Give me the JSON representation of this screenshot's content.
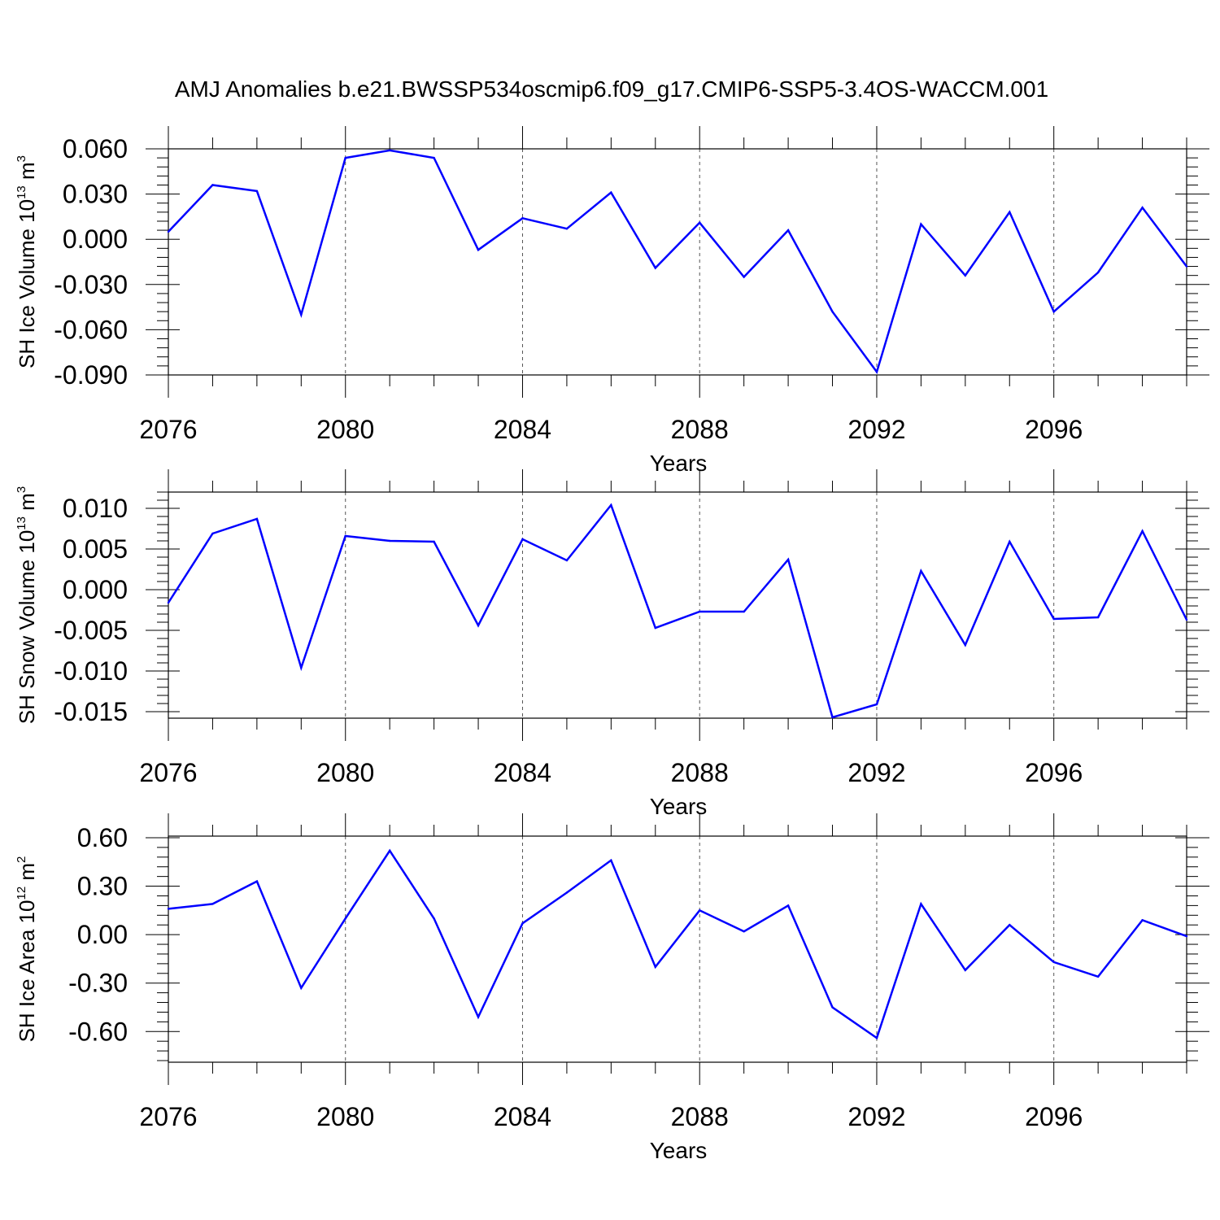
{
  "figure": {
    "title": "AMJ Anomalies b.e21.BWSSP534oscmip6.f09_g17.CMIP6-SSP5-3.4OS-WACCM.001"
  },
  "colors": {
    "line": "#0000ff",
    "axis": "#000000",
    "grid": "#555555"
  },
  "chart_data": [
    {
      "type": "line",
      "xlabel": "Years",
      "ylabel": {
        "prefix": "SH Ice Volume 10",
        "exp": "13",
        "unit": " m",
        "unit_exp": "3"
      },
      "xlim": [
        2076,
        2099
      ],
      "ylim": [
        -0.09,
        0.06
      ],
      "x_ticks": [
        "2076",
        "2080",
        "2084",
        "2088",
        "2092",
        "2096"
      ],
      "y_ticks": [
        "0.060",
        "0.030",
        "0.000",
        "-0.030",
        "-0.060",
        "-0.090"
      ],
      "y_tick_values": [
        0.06,
        0.03,
        0.0,
        -0.03,
        -0.06,
        -0.09
      ],
      "grid": "vertical dashed at labeled years",
      "x": [
        2076,
        2077,
        2078,
        2079,
        2080,
        2081,
        2082,
        2083,
        2084,
        2085,
        2086,
        2087,
        2088,
        2089,
        2090,
        2091,
        2092,
        2093,
        2094,
        2095,
        2096,
        2097,
        2098,
        2099
      ],
      "values": [
        0.005,
        0.036,
        0.032,
        -0.05,
        0.054,
        0.059,
        0.054,
        -0.007,
        0.014,
        0.007,
        0.031,
        -0.019,
        0.011,
        -0.025,
        0.006,
        -0.048,
        -0.088,
        0.01,
        -0.024,
        0.018,
        -0.048,
        -0.022,
        0.021,
        -0.018
      ]
    },
    {
      "type": "line",
      "xlabel": "Years",
      "ylabel": {
        "prefix": "SH Snow Volume 10",
        "exp": "13",
        "unit": " m",
        "unit_exp": "3"
      },
      "xlim": [
        2076,
        2099
      ],
      "ylim": [
        -0.0158,
        0.012
      ],
      "x_ticks": [
        "2076",
        "2080",
        "2084",
        "2088",
        "2092",
        "2096"
      ],
      "y_ticks": [
        "0.010",
        "0.005",
        "0.000",
        "-0.005",
        "-0.010",
        "-0.015"
      ],
      "y_tick_values": [
        0.01,
        0.005,
        0.0,
        -0.005,
        -0.01,
        -0.015
      ],
      "grid": "vertical dashed at labeled years",
      "x": [
        2076,
        2077,
        2078,
        2079,
        2080,
        2081,
        2082,
        2083,
        2084,
        2085,
        2086,
        2087,
        2088,
        2089,
        2090,
        2091,
        2092,
        2093,
        2094,
        2095,
        2096,
        2097,
        2098,
        2099
      ],
      "values": [
        -0.0016,
        0.0069,
        0.0087,
        -0.0096,
        0.0066,
        0.006,
        0.0059,
        -0.0044,
        0.0062,
        0.0036,
        0.0104,
        -0.0047,
        -0.0027,
        -0.0027,
        0.0037,
        -0.0157,
        -0.0141,
        0.0023,
        -0.0068,
        0.0059,
        -0.0036,
        -0.0034,
        0.0072,
        -0.0037
      ]
    },
    {
      "type": "line",
      "xlabel": "Years",
      "ylabel": {
        "prefix": "SH Ice Area 10",
        "exp": "12",
        "unit": " m",
        "unit_exp": "2"
      },
      "xlim": [
        2076,
        2099
      ],
      "ylim": [
        -0.79,
        0.61
      ],
      "x_ticks": [
        "2076",
        "2080",
        "2084",
        "2088",
        "2092",
        "2096"
      ],
      "y_ticks": [
        "0.60",
        "0.30",
        "0.00",
        "-0.30",
        "-0.60"
      ],
      "y_tick_values": [
        0.6,
        0.3,
        0.0,
        -0.3,
        -0.6
      ],
      "grid": "vertical dashed at labeled years",
      "x": [
        2076,
        2077,
        2078,
        2079,
        2080,
        2081,
        2082,
        2083,
        2084,
        2085,
        2086,
        2087,
        2088,
        2089,
        2090,
        2091,
        2092,
        2093,
        2094,
        2095,
        2096,
        2097,
        2098,
        2099
      ],
      "values": [
        0.16,
        0.19,
        0.33,
        -0.33,
        0.1,
        0.52,
        0.1,
        -0.51,
        0.07,
        0.26,
        0.46,
        -0.2,
        0.15,
        0.02,
        0.18,
        -0.45,
        -0.64,
        0.19,
        -0.22,
        0.06,
        -0.17,
        -0.26,
        0.09,
        -0.01
      ]
    }
  ]
}
